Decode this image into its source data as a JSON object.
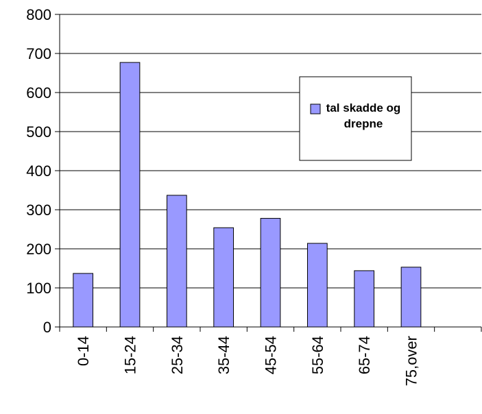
{
  "chart_data": {
    "type": "bar",
    "categories": [
      "0-14",
      "15-24",
      "25-34",
      "35-44",
      "45-54",
      "55-64",
      "65-74",
      "75,over",
      null
    ],
    "series": [
      {
        "name": "tal skadde og drepne",
        "color": "#9999ff",
        "values": [
          137,
          677,
          337,
          254,
          278,
          214,
          144,
          153,
          null
        ]
      }
    ],
    "ylim": [
      0,
      800
    ],
    "yticks": [
      0,
      100,
      200,
      300,
      400,
      500,
      600,
      700,
      800
    ],
    "grid": true,
    "legend": "upper right"
  }
}
